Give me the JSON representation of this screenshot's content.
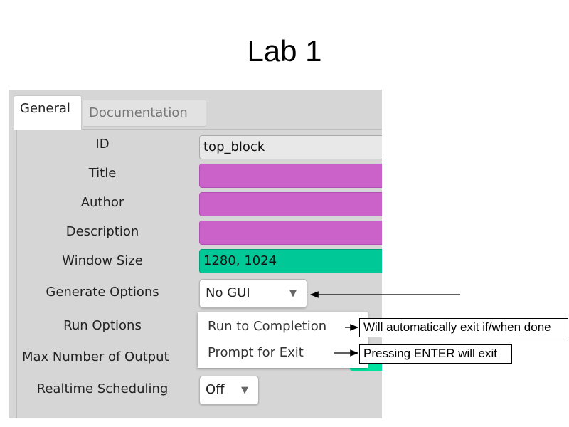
{
  "slide": {
    "title": "Lab 1"
  },
  "tabs": [
    {
      "label": "General",
      "active": true
    },
    {
      "label": "Documentation",
      "active": false
    }
  ],
  "fields": [
    {
      "label": "ID",
      "value": "top_block",
      "color": "#e8e8e8"
    },
    {
      "label": "Title",
      "value": "",
      "color": "#cb62c9"
    },
    {
      "label": "Author",
      "value": "",
      "color": "#cb62c9"
    },
    {
      "label": "Description",
      "value": "",
      "color": "#cb62c9"
    },
    {
      "label": "Window Size",
      "value": "1280, 1024",
      "color": "#00c896"
    }
  ],
  "generate_options": {
    "label": "Generate Options",
    "value": "No GUI"
  },
  "run_options": {
    "label": "Run Options",
    "menu": [
      "Run to Completion",
      "Prompt for Exit"
    ]
  },
  "max_output": {
    "label": "Max Number of Output",
    "color": "#00e3a0"
  },
  "realtime": {
    "label": "Realtime Scheduling",
    "value": "Off"
  },
  "annotations": {
    "run_to_completion": "Will automatically exit if/when done",
    "prompt_for_exit": "Pressing ENTER will exit"
  }
}
